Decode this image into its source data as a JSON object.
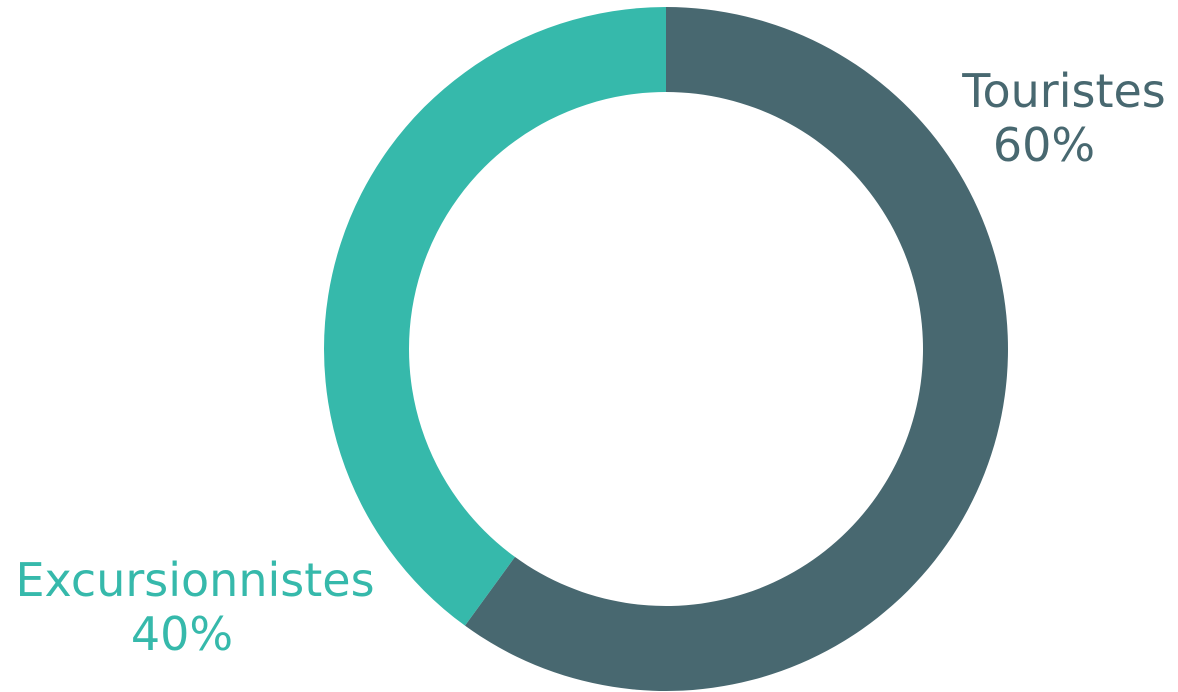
{
  "chart_data": {
    "type": "pie",
    "variant": "donut",
    "title": "",
    "slices": [
      {
        "label": "Touristes",
        "value": 60,
        "value_label": "60%",
        "color": "#486870"
      },
      {
        "label": "Excursionnistes",
        "value": 40,
        "value_label": "40%",
        "color": "#36b9ab"
      }
    ],
    "start_angle_deg": 0,
    "direction": "clockwise",
    "legend": "none"
  }
}
